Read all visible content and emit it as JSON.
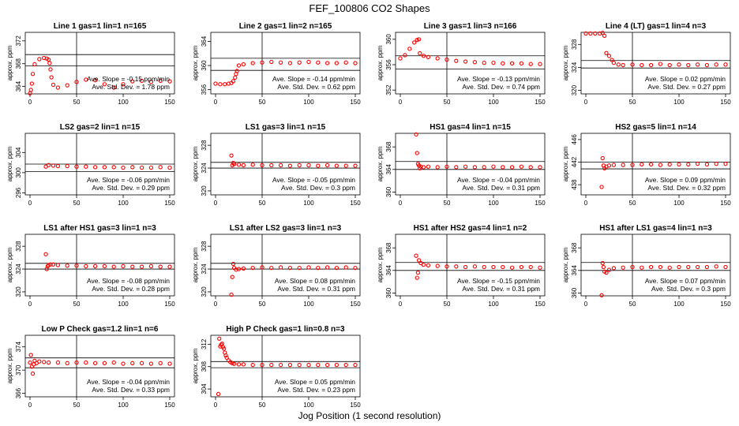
{
  "title": "FEF_100806  CO2 Shapes",
  "xlabel": "Jog Position (1 second resolution)",
  "ylabel": "approx. ppm",
  "colors": {
    "points": "#ff0000",
    "axes": "#000000"
  },
  "chart_data": [
    {
      "type": "scatter",
      "title": "Line 1 gas=1 lin=1 n=165",
      "xlim": [
        0,
        150
      ],
      "xticks": [
        0,
        50,
        100,
        150
      ],
      "ylim": [
        362.7,
        373.5
      ],
      "yticks": [
        364,
        368,
        372
      ],
      "hlines": [
        369.6,
        367.6
      ],
      "vline": 50,
      "series": [
        {
          "x": [
            0,
            1,
            2,
            3,
            5,
            10,
            15,
            18,
            20,
            21,
            22,
            23,
            25,
            30,
            40,
            50,
            60,
            70,
            80,
            90,
            100,
            110,
            120,
            130,
            140,
            150
          ],
          "y": [
            362.8,
            363.4,
            364.5,
            366.2,
            367.9,
            368.8,
            369.0,
            368.9,
            368.7,
            368.1,
            367.0,
            365.6,
            364.3,
            363.8,
            364.2,
            364.8,
            365.2,
            365.1,
            364.4,
            363.8,
            364.4,
            364.9,
            365.0,
            364.8,
            365.0,
            364.9
          ]
        }
      ],
      "annotation_lines": [
        "Ave. Slope = -0.15 ppm/min",
        "Ave. Std. Dev. = 1.78 ppm"
      ]
    },
    {
      "type": "scatter",
      "title": "Line 2 gas=1 lin=2 n=165",
      "xlim": [
        0,
        150
      ],
      "xticks": [
        0,
        50,
        100,
        150
      ],
      "ylim": [
        355.3,
        365.5
      ],
      "yticks": [
        356,
        360,
        364
      ],
      "hlines": [
        361.2,
        359.2
      ],
      "vline": 50,
      "series": [
        {
          "x": [
            0,
            5,
            10,
            14,
            17,
            19,
            21,
            22,
            23,
            25,
            30,
            40,
            50,
            60,
            70,
            80,
            90,
            100,
            110,
            120,
            130,
            140,
            150
          ],
          "y": [
            357.0,
            356.9,
            356.9,
            357.0,
            357.1,
            357.4,
            358.0,
            358.6,
            359.1,
            360.0,
            360.2,
            360.4,
            360.5,
            360.6,
            360.5,
            360.4,
            360.5,
            360.6,
            360.5,
            360.4,
            360.4,
            360.5,
            360.4
          ]
        }
      ],
      "annotation_lines": [
        "Ave. Slope = -0.14 ppm/min",
        "Ave. Std. Dev. = 0.62 ppm"
      ]
    },
    {
      "type": "scatter",
      "title": "Line 3 gas=1 lin=3 n=166",
      "xlim": [
        0,
        150
      ],
      "xticks": [
        0,
        50,
        100,
        150
      ],
      "ylim": [
        351.4,
        361.1
      ],
      "yticks": [
        352,
        356,
        360
      ],
      "hlines": [
        357.4,
        355.3
      ],
      "vline": 50,
      "series": [
        {
          "x": [
            0,
            5,
            10,
            15,
            18,
            20,
            21,
            25,
            30,
            40,
            50,
            60,
            70,
            80,
            90,
            100,
            110,
            120,
            130,
            140,
            150
          ],
          "y": [
            357.0,
            357.5,
            358.5,
            359.5,
            359.9,
            360.0,
            357.8,
            357.4,
            357.2,
            357.0,
            356.8,
            356.6,
            356.5,
            356.4,
            356.3,
            356.3,
            356.2,
            356.2,
            356.2,
            356.1,
            356.1
          ]
        }
      ],
      "annotation_lines": [
        "Ave. Slope = -0.13 ppm/min",
        "Ave. Std. Dev. = 0.74 ppm"
      ]
    },
    {
      "type": "scatter",
      "title": "Line 4 (LT) gas=1 lin=4 n=3",
      "xlim": [
        0,
        150
      ],
      "xticks": [
        0,
        50,
        100,
        150
      ],
      "ylim": [
        319.4,
        330.1
      ],
      "yticks": [
        320,
        324,
        328
      ],
      "hlines": [
        325.2,
        323.9
      ],
      "vline": 50,
      "series": [
        {
          "x": [
            0,
            5,
            10,
            15,
            18,
            20,
            22,
            25,
            28,
            30,
            35,
            40,
            50,
            60,
            70,
            80,
            90,
            100,
            110,
            120,
            130,
            140,
            150
          ],
          "y": [
            329.9,
            329.9,
            329.9,
            329.9,
            330.0,
            329.5,
            326.5,
            326.0,
            325.3,
            324.8,
            324.5,
            324.4,
            324.5,
            324.4,
            324.4,
            324.6,
            324.4,
            324.5,
            324.4,
            324.5,
            324.4,
            324.5,
            324.5
          ]
        }
      ],
      "annotation_lines": [
        "Ave. Slope = 0.02 ppm/min",
        "Ave. Std. Dev. = 0.27 ppm"
      ]
    },
    {
      "type": "scatter",
      "title": "LS2 gas=2 lin=1 n=15",
      "xlim": [
        0,
        150
      ],
      "xticks": [
        0,
        50,
        100,
        150
      ],
      "ylim": [
        295.6,
        307.8
      ],
      "yticks": [
        296,
        300,
        304
      ],
      "hlines": [
        301.7,
        300.2
      ],
      "vline": 50,
      "series": [
        {
          "x": [
            17,
            20,
            25,
            30,
            40,
            50,
            60,
            70,
            80,
            90,
            100,
            110,
            120,
            130,
            140,
            150
          ],
          "y": [
            301.2,
            301.5,
            301.4,
            301.3,
            301.3,
            301.2,
            301.2,
            301.1,
            301.1,
            301.1,
            301.0,
            301.1,
            301.0,
            301.0,
            301.1,
            301.0
          ]
        }
      ],
      "annotation_lines": [
        "Ave. Slope = -0.06 ppm/min",
        "Ave. Std. Dev. = 0.29 ppm"
      ]
    },
    {
      "type": "scatter",
      "title": "LS1 gas=3 lin=1 n=15",
      "xlim": [
        0,
        150
      ],
      "xticks": [
        0,
        50,
        100,
        150
      ],
      "ylim": [
        319.3,
        330.1
      ],
      "yticks": [
        320,
        324,
        328
      ],
      "hlines": [
        325.0,
        324.0
      ],
      "vline": 50,
      "series": [
        {
          "x": [
            17,
            18,
            19,
            20,
            25,
            30,
            40,
            50,
            60,
            70,
            80,
            90,
            100,
            110,
            120,
            130,
            140,
            150
          ],
          "y": [
            326.2,
            324.5,
            324.9,
            324.7,
            324.6,
            324.5,
            324.6,
            324.5,
            324.5,
            324.5,
            324.4,
            324.5,
            324.5,
            324.4,
            324.5,
            324.4,
            324.4,
            324.4
          ]
        }
      ],
      "annotation_lines": [
        "Ave. Slope = -0.05 ppm/min",
        "Ave. Std. Dev. = 0.3 ppm"
      ]
    },
    {
      "type": "scatter",
      "title": "HS1 gas=4 lin=1 n=15",
      "xlim": [
        0,
        150
      ],
      "xticks": [
        0,
        50,
        100,
        150
      ],
      "ylim": [
        359.5,
        370.4
      ],
      "yticks": [
        360,
        364,
        368
      ],
      "hlines": [
        365.4,
        364.0
      ],
      "vline": 50,
      "series": [
        {
          "x": [
            17,
            18,
            19,
            20,
            21,
            22,
            25,
            30,
            40,
            50,
            60,
            70,
            80,
            90,
            100,
            110,
            120,
            130,
            140,
            150
          ],
          "y": [
            370.2,
            366.9,
            365.0,
            364.7,
            364.2,
            364.5,
            364.4,
            364.5,
            364.4,
            364.5,
            364.4,
            364.5,
            364.4,
            364.4,
            364.5,
            364.4,
            364.4,
            364.5,
            364.4,
            364.4
          ]
        }
      ],
      "annotation_lines": [
        "Ave. Slope = -0.04 ppm/min",
        "Ave. Std. Dev. = 0.31 ppm"
      ]
    },
    {
      "type": "scatter",
      "title": "HS2 gas=5 lin=1 n=14",
      "xlim": [
        0,
        150
      ],
      "xticks": [
        0,
        50,
        100,
        150
      ],
      "ylim": [
        436.2,
        447.1
      ],
      "yticks": [
        438,
        442,
        446
      ],
      "hlines": [
        442.0,
        440.8
      ],
      "vline": 50,
      "series": [
        {
          "x": [
            17,
            18,
            19,
            20,
            22,
            25,
            30,
            40,
            50,
            60,
            70,
            80,
            90,
            100,
            110,
            120,
            130,
            140,
            150
          ],
          "y": [
            437.6,
            442.7,
            441.4,
            440.9,
            441.2,
            441.4,
            441.5,
            441.5,
            441.5,
            441.6,
            441.6,
            441.5,
            441.6,
            441.6,
            441.6,
            441.7,
            441.6,
            441.7,
            441.7
          ]
        }
      ],
      "annotation_lines": [
        "Ave. Slope = 0.09 ppm/min",
        "Ave. Std. Dev. = 0.32 ppm"
      ]
    },
    {
      "type": "scatter",
      "title": "LS1 after HS1 gas=3 lin=1 n=3",
      "xlim": [
        0,
        150
      ],
      "xticks": [
        0,
        50,
        100,
        150
      ],
      "ylim": [
        319.3,
        330.1
      ],
      "yticks": [
        320,
        324,
        328
      ],
      "hlines": [
        325.0,
        324.0
      ],
      "vline": 50,
      "series": [
        {
          "x": [
            17,
            18,
            19,
            20,
            22,
            25,
            30,
            40,
            50,
            60,
            70,
            80,
            90,
            100,
            110,
            120,
            130,
            140,
            150
          ],
          "y": [
            326.6,
            324.0,
            324.5,
            324.7,
            324.8,
            324.8,
            324.7,
            324.6,
            324.6,
            324.5,
            324.5,
            324.5,
            324.4,
            324.5,
            324.4,
            324.4,
            324.5,
            324.4,
            324.4
          ]
        }
      ],
      "annotation_lines": [
        "Ave. Slope = -0.08 ppm/min",
        "Ave. Std. Dev. = 0.28 ppm"
      ]
    },
    {
      "type": "scatter",
      "title": "LS1 after LS2 gas=3 lin=1 n=3",
      "xlim": [
        0,
        150
      ],
      "xticks": [
        0,
        50,
        100,
        150
      ],
      "ylim": [
        319.3,
        330.1
      ],
      "yticks": [
        320,
        324,
        328
      ],
      "hlines": [
        325.0,
        324.0
      ],
      "vline": 50,
      "series": [
        {
          "x": [
            17,
            18,
            19,
            20,
            22,
            25,
            30,
            40,
            50,
            60,
            70,
            80,
            90,
            100,
            110,
            120,
            130,
            140,
            150
          ],
          "y": [
            319.5,
            322.6,
            324.9,
            324.2,
            323.9,
            324.0,
            324.1,
            324.2,
            324.3,
            324.2,
            324.3,
            324.2,
            324.2,
            324.3,
            324.2,
            324.3,
            324.2,
            324.3,
            324.2
          ]
        }
      ],
      "annotation_lines": [
        "Ave. Slope = 0.08 ppm/min",
        "Ave. Std. Dev. = 0.31 ppm"
      ]
    },
    {
      "type": "scatter",
      "title": "HS1 after HS2 gas=4 lin=1 n=2",
      "xlim": [
        0,
        150
      ],
      "xticks": [
        0,
        50,
        100,
        150
      ],
      "ylim": [
        359.5,
        370.4
      ],
      "yticks": [
        360,
        364,
        368
      ],
      "hlines": [
        365.4,
        364.0
      ],
      "vline": 50,
      "series": [
        {
          "x": [
            17,
            18,
            19,
            20,
            22,
            25,
            30,
            40,
            50,
            60,
            70,
            80,
            90,
            100,
            110,
            120,
            130,
            140,
            150
          ],
          "y": [
            366.6,
            362.7,
            363.6,
            365.8,
            365.3,
            365.0,
            364.9,
            364.8,
            364.7,
            364.7,
            364.6,
            364.7,
            364.6,
            364.6,
            364.6,
            364.5,
            364.6,
            364.6,
            364.5
          ]
        }
      ],
      "annotation_lines": [
        "Ave. Slope = -0.15 ppm/min",
        "Ave. Std. Dev. = 0.31 ppm"
      ]
    },
    {
      "type": "scatter",
      "title": "HS1 after LS1 gas=4 lin=1 n=3",
      "xlim": [
        0,
        150
      ],
      "xticks": [
        0,
        50,
        100,
        150
      ],
      "ylim": [
        359.5,
        370.4
      ],
      "yticks": [
        360,
        364,
        368
      ],
      "hlines": [
        365.4,
        364.0
      ],
      "vline": 50,
      "series": [
        {
          "x": [
            17,
            18,
            19,
            20,
            22,
            25,
            30,
            40,
            50,
            60,
            70,
            80,
            90,
            100,
            110,
            120,
            130,
            140,
            150
          ],
          "y": [
            359.6,
            365.3,
            364.6,
            363.8,
            363.6,
            364.1,
            364.4,
            364.5,
            364.6,
            364.5,
            364.6,
            364.6,
            364.5,
            364.6,
            364.6,
            364.6,
            364.6,
            364.7,
            364.6
          ]
        }
      ],
      "annotation_lines": [
        "Ave. Slope = 0.07 ppm/min",
        "Ave. Std. Dev. = 0.3 ppm"
      ]
    },
    {
      "type": "scatter",
      "title": "Low P Check gas=1.2 lin=1 n=6",
      "xlim": [
        0,
        150
      ],
      "xticks": [
        0,
        50,
        100,
        150
      ],
      "ylim": [
        365.4,
        376.0
      ],
      "yticks": [
        366,
        370,
        374
      ],
      "hlines": [
        372.1,
        370.4
      ],
      "vline": 50,
      "series": [
        {
          "x": [
            0,
            1,
            2,
            3,
            4,
            5,
            7,
            10,
            15,
            20,
            30,
            40,
            50,
            60,
            70,
            80,
            90,
            100,
            110,
            120,
            130,
            140,
            150
          ],
          "y": [
            371.3,
            372.6,
            370.6,
            369.4,
            371.0,
            371.6,
            371.2,
            371.5,
            371.4,
            371.3,
            371.3,
            371.2,
            371.3,
            371.3,
            371.2,
            371.2,
            371.3,
            371.1,
            371.2,
            371.2,
            371.1,
            371.2,
            371.1
          ]
        }
      ],
      "annotation_lines": [
        "Ave. Slope = -0.04 ppm/min",
        "Ave. Std. Dev. = 0.33 ppm"
      ]
    },
    {
      "type": "scatter",
      "title": "High P Check gas=1 lin=0.8 n=3",
      "xlim": [
        0,
        150
      ],
      "xticks": [
        0,
        50,
        100,
        150
      ],
      "ylim": [
        302.6,
        313.6
      ],
      "yticks": [
        304,
        308,
        312
      ],
      "hlines": [
        308.9,
        307.8
      ],
      "vline": 50,
      "series": [
        {
          "x": [
            3,
            4,
            5,
            6,
            7,
            8,
            9,
            10,
            11,
            12,
            14,
            16,
            18,
            20,
            25,
            30,
            40,
            50,
            60,
            70,
            80,
            90,
            100,
            110,
            120,
            130,
            140,
            150
          ],
          "y": [
            303.1,
            313.0,
            311.6,
            311.9,
            312.1,
            311.5,
            311.2,
            310.5,
            310.0,
            309.6,
            309.1,
            308.8,
            308.6,
            308.5,
            308.4,
            308.4,
            308.3,
            308.3,
            308.3,
            308.3,
            308.3,
            308.3,
            308.3,
            308.3,
            308.3,
            308.3,
            308.3,
            308.3
          ]
        }
      ],
      "annotation_lines": [
        "Ave. Slope = 0.05 ppm/min",
        "Ave. Std. Dev. = 0.23 ppm"
      ]
    }
  ]
}
